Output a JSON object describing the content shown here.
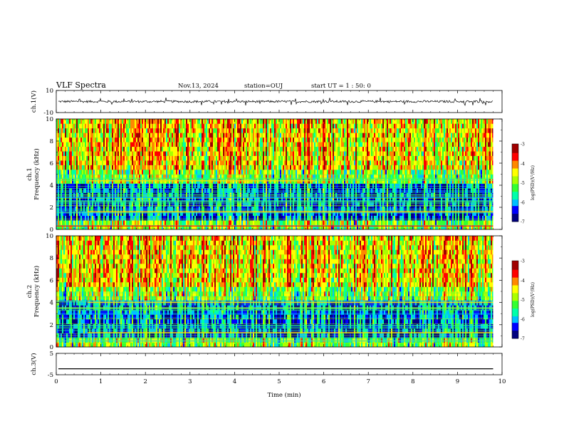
{
  "header": {
    "title": "VLF Spectra",
    "date": "Nov.13, 2024",
    "station": "station=OUJ",
    "start": "start UT =  1 : 50: 0"
  },
  "colors": {
    "colormap": [
      "#00007f",
      "#0000ff",
      "#00bfff",
      "#00ffaa",
      "#33ff33",
      "#aaff00",
      "#ffff00",
      "#ff8800",
      "#ff0000",
      "#a00000"
    ],
    "trace": "#000000",
    "axis": "#000000"
  },
  "chart_data": [
    {
      "id": "ch1-waveform",
      "type": "line",
      "ylabel": "ch.1(V)",
      "ylim": [
        -10,
        10
      ],
      "yticks": [
        "10",
        "-10"
      ],
      "xlim": [
        0,
        10
      ],
      "series": [
        {
          "values_summary": {
            "baseline": 0,
            "noise_amplitude_V": 1.0,
            "spike_amplitude_V": 3.5
          }
        }
      ]
    },
    {
      "id": "ch1-spectrogram",
      "type": "heatmap",
      "ylabel": "ch.1 Frequency (kHz)",
      "xlim": [
        0,
        10
      ],
      "ylim": [
        0,
        10
      ],
      "yticks": [
        "0",
        "2",
        "4",
        "6",
        "8",
        "10"
      ],
      "colorbar": {
        "label": "log(PSD)(V²/Hz)",
        "range": [
          -7,
          -3
        ],
        "ticks": [
          "-3",
          "-4",
          "-5",
          "-6",
          "-7"
        ]
      },
      "features": [
        {
          "description": "strong line",
          "freq_kHz": 0.3,
          "from_min": 0,
          "to_min": 9.8
        },
        {
          "description": "band",
          "freq_kHz": 1.6,
          "from_min": 0.7,
          "to_min": 9.8
        },
        {
          "description": "band",
          "freq_kHz": 4.4,
          "from_min": 0.7,
          "to_min": 5.8
        }
      ]
    },
    {
      "id": "ch2-spectrogram",
      "type": "heatmap",
      "ylabel": "ch.2 Frequency (kHz)",
      "xlim": [
        0,
        10
      ],
      "ylim": [
        0,
        10
      ],
      "yticks": [
        "0",
        "2",
        "4",
        "6",
        "8",
        "10"
      ],
      "colorbar": {
        "label": "log(PSD)(V²/Hz)",
        "range": [
          -7,
          -3
        ],
        "ticks": [
          "-3",
          "-4",
          "-5",
          "-6",
          "-7"
        ]
      },
      "features": [
        {
          "description": "band",
          "freq_kHz": 1.3,
          "from_min": 0.7,
          "to_min": 9.8
        },
        {
          "description": "band",
          "freq_kHz": 4.0,
          "from_min": 0.7,
          "to_min": 9.8
        }
      ]
    },
    {
      "id": "ch3-waveform",
      "type": "line",
      "ylabel": "ch.3(V)",
      "ylim": [
        -5,
        5
      ],
      "yticks": [
        "5",
        "-5"
      ],
      "xlim": [
        0,
        10
      ],
      "series": [
        {
          "values_summary": {
            "constant_V": -2.2
          }
        }
      ]
    }
  ],
  "xaxis": {
    "label": "Time (min)",
    "ticks": [
      "0",
      "1",
      "2",
      "3",
      "4",
      "5",
      "6",
      "7",
      "8",
      "9",
      "10"
    ]
  }
}
